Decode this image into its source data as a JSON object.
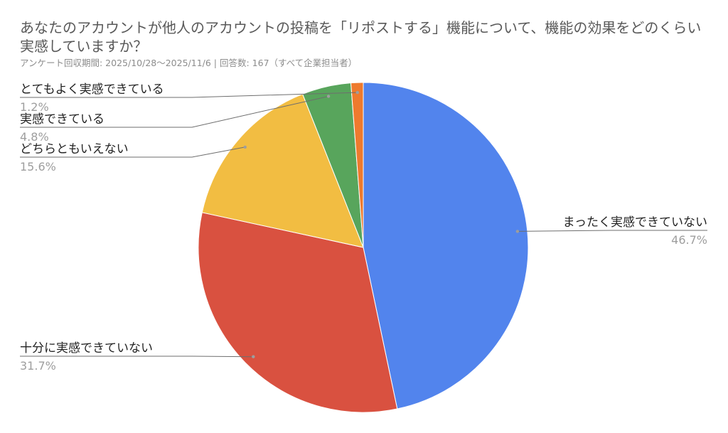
{
  "chart_data": {
    "type": "pie",
    "title": "あなたのアカウントが他人のアカウントの投稿を「リポストする」機能について、機能の効果をどのくらい実感していますか？",
    "subtitle": "アンケート回収期間: 2025/10/28〜2025/11/6 | 回答数: 167（すべて企業担当者）",
    "legend": "labels",
    "slices": [
      {
        "label": "まったく実感できていない",
        "value": 46.7,
        "value_label": "46.7%",
        "color": "#5284ed"
      },
      {
        "label": "十分に実感できていない",
        "value": 31.7,
        "value_label": "31.7%",
        "color": "#d95140"
      },
      {
        "label": "どちらともいえない",
        "value": 15.6,
        "value_label": "15.6%",
        "color": "#f2bd42"
      },
      {
        "label": "実感できている",
        "value": 4.8,
        "value_label": "4.8%",
        "color": "#58a55c"
      },
      {
        "label": "とてもよく実感できている",
        "value": 1.2,
        "value_label": "1.2%",
        "color": "#ee7a2e"
      }
    ]
  }
}
